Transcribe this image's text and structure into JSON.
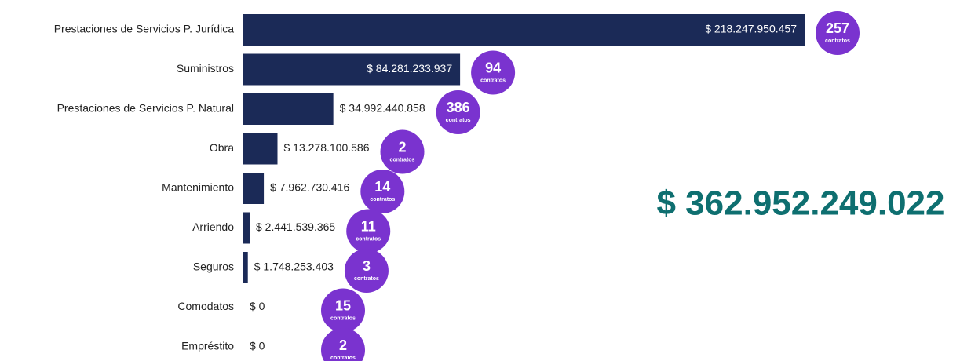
{
  "chart_data": {
    "type": "bar",
    "orientation": "horizontal",
    "categories": [
      "Prestaciones de Servicios P. Jurídica",
      "Suministros",
      "Prestaciones de Servicios P. Natural",
      "Obra",
      "Mantenimiento",
      "Arriendo",
      "Seguros",
      "Comodatos",
      "Empréstito"
    ],
    "values": [
      218247950457,
      84281233937,
      34992440858,
      13278100586,
      7962730416,
      2441539365,
      1748253403,
      0,
      0
    ],
    "value_labels": [
      "$ 218.247.950.457",
      "$ 84.281.233.937",
      "$ 34.992.440.858",
      "$ 13.278.100.586",
      "$ 7.962.730.416",
      "$ 2.441.539.365",
      "$ 1.748.253.403",
      "$ 0",
      "$ 0"
    ],
    "contracts": [
      257,
      94,
      386,
      2,
      14,
      11,
      3,
      15,
      2
    ],
    "contracts_unit": "contratos",
    "color": "#1b2a57",
    "bubble_color": "#7a33cf",
    "total": "$ 362.952.249.022",
    "total_color": "#0e6f70"
  }
}
